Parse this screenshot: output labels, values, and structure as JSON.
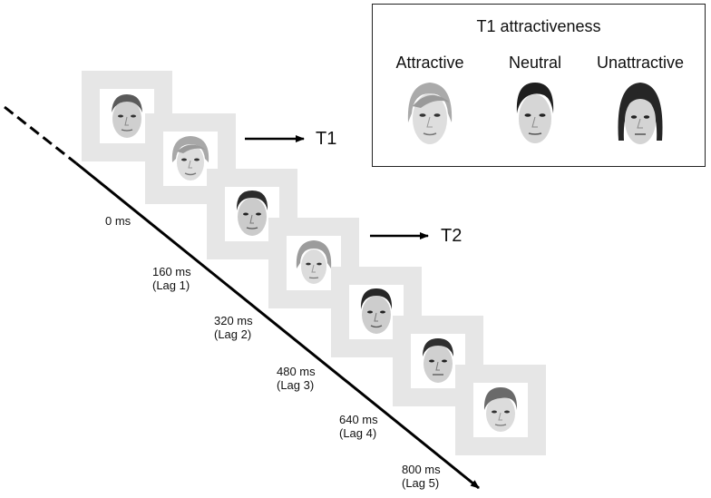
{
  "legend": {
    "title": "T1 attractiveness",
    "categories": [
      {
        "label": "Attractive",
        "face": "face-blonde-female"
      },
      {
        "label": "Neutral",
        "face": "face-dark-hair-female"
      },
      {
        "label": "Unattractive",
        "face": "face-brown-hair-female"
      }
    ]
  },
  "targets": {
    "t1": "T1",
    "t2": "T2"
  },
  "timeline": [
    {
      "time": "0 ms",
      "lag": ""
    },
    {
      "time": "160 ms",
      "lag": "(Lag 1)"
    },
    {
      "time": "320 ms",
      "lag": "(Lag 2)"
    },
    {
      "time": "480 ms",
      "lag": "(Lag 3)"
    },
    {
      "time": "640 ms",
      "lag": "(Lag 4)"
    },
    {
      "time": "800 ms",
      "lag": "(Lag 5)"
    }
  ],
  "frames": [
    {
      "face": "face-male-short-hair"
    },
    {
      "face": "face-blonde-female"
    },
    {
      "face": "face-male-dark-hair"
    },
    {
      "face": "face-female-light-hair"
    },
    {
      "face": "face-male-dark-hair"
    },
    {
      "face": "face-male-short-hair"
    },
    {
      "face": "face-male-light-hair"
    }
  ],
  "colors": {
    "frame_border": "#e6e6e6",
    "line": "#000000",
    "skin": "#d9d9d9",
    "hair_dark": "#2b2b2b",
    "hair_blonde": "#a8a8a8"
  }
}
